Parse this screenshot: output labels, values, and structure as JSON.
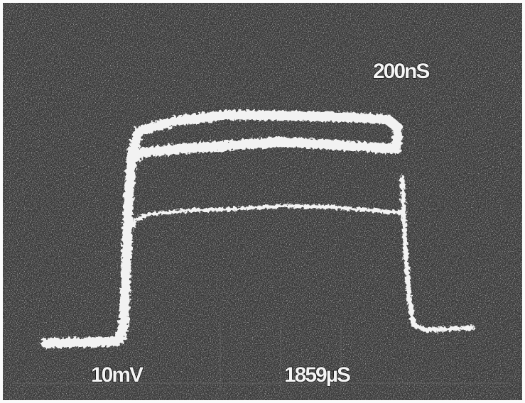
{
  "annotations": [
    "200nS",
    "10mV",
    "1859µS"
  ]
}
